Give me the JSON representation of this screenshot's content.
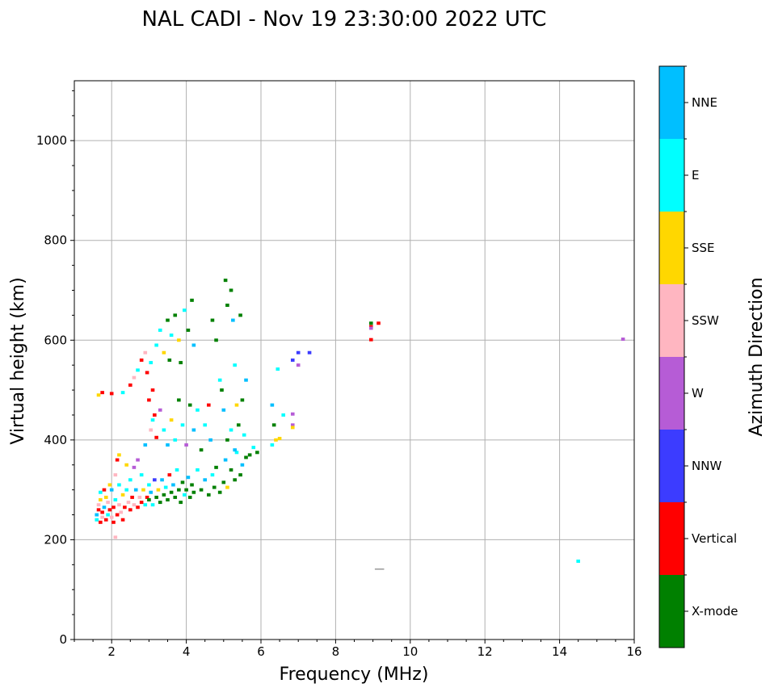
{
  "chart_data": {
    "type": "scatter",
    "title": "NAL CADI - Nov 19 23:30:00 2022 UTC",
    "xlabel": "Frequency (MHz)",
    "ylabel": "Virtual height (km)",
    "xlim": [
      1,
      16
    ],
    "ylim": [
      0,
      1120
    ],
    "xticks": [
      2,
      4,
      6,
      8,
      10,
      12,
      14,
      16
    ],
    "yticks": [
      0,
      200,
      400,
      600,
      800,
      1000
    ],
    "grid": true,
    "colorbar": {
      "label": "Azimuth Direction",
      "categories": [
        "X-mode",
        "Vertical",
        "NNW",
        "W",
        "SSW",
        "SSE",
        "E",
        "NNE"
      ],
      "colors": [
        "#008000",
        "#ff0000",
        "#3c3cff",
        "#b65cd6",
        "#ffb6c1",
        "#ffd700",
        "#00ffff",
        "#00bfff"
      ]
    },
    "point_format": [
      "frequency_mhz",
      "virtual_height_km",
      "category_index"
    ],
    "points": [
      [
        1.6,
        240,
        6
      ],
      [
        1.6,
        250,
        7
      ],
      [
        1.65,
        260,
        1
      ],
      [
        1.65,
        270,
        4
      ],
      [
        1.7,
        235,
        1
      ],
      [
        1.7,
        280,
        5
      ],
      [
        1.7,
        295,
        6
      ],
      [
        1.75,
        245,
        4
      ],
      [
        1.75,
        255,
        1
      ],
      [
        1.8,
        265,
        7
      ],
      [
        1.8,
        300,
        1
      ],
      [
        1.85,
        240,
        1
      ],
      [
        1.85,
        285,
        5
      ],
      [
        1.9,
        250,
        6
      ],
      [
        1.9,
        275,
        4
      ],
      [
        1.95,
        260,
        1
      ],
      [
        1.95,
        310,
        5
      ],
      [
        2.0,
        245,
        4
      ],
      [
        2.0,
        300,
        7
      ],
      [
        2.05,
        265,
        1
      ],
      [
        2.05,
        235,
        1
      ],
      [
        2.1,
        280,
        6
      ],
      [
        2.1,
        330,
        4
      ],
      [
        2.15,
        250,
        1
      ],
      [
        2.15,
        360,
        1
      ],
      [
        2.2,
        270,
        4
      ],
      [
        2.2,
        310,
        6
      ],
      [
        2.25,
        255,
        4
      ],
      [
        2.3,
        290,
        5
      ],
      [
        2.3,
        240,
        1
      ],
      [
        2.35,
        265,
        1
      ],
      [
        2.4,
        300,
        6
      ],
      [
        2.4,
        350,
        5
      ],
      [
        2.45,
        275,
        4
      ],
      [
        2.5,
        260,
        1
      ],
      [
        2.5,
        320,
        6
      ],
      [
        2.55,
        285,
        1
      ],
      [
        2.6,
        270,
        4
      ],
      [
        2.6,
        345,
        3
      ],
      [
        2.65,
        300,
        7
      ],
      [
        2.7,
        265,
        1
      ],
      [
        2.7,
        360,
        3
      ],
      [
        2.75,
        285,
        4
      ],
      [
        2.8,
        275,
        1
      ],
      [
        2.8,
        330,
        6
      ],
      [
        2.85,
        300,
        5
      ],
      [
        2.9,
        270,
        6
      ],
      [
        2.9,
        390,
        7
      ],
      [
        2.95,
        285,
        1
      ],
      [
        3.0,
        280,
        0
      ],
      [
        3.0,
        310,
        6
      ],
      [
        3.05,
        295,
        7
      ],
      [
        3.1,
        270,
        6
      ],
      [
        3.15,
        320,
        2
      ],
      [
        3.2,
        285,
        0
      ],
      [
        3.25,
        300,
        5
      ],
      [
        3.3,
        275,
        0
      ],
      [
        3.35,
        320,
        7
      ],
      [
        3.4,
        290,
        0
      ],
      [
        3.45,
        305,
        6
      ],
      [
        3.5,
        280,
        0
      ],
      [
        3.55,
        330,
        1
      ],
      [
        3.6,
        295,
        0
      ],
      [
        3.65,
        310,
        7
      ],
      [
        3.7,
        285,
        0
      ],
      [
        3.75,
        340,
        6
      ],
      [
        3.8,
        300,
        0
      ],
      [
        3.85,
        275,
        0
      ],
      [
        3.9,
        315,
        0
      ],
      [
        3.95,
        290,
        6
      ],
      [
        4.0,
        300,
        0
      ],
      [
        4.05,
        325,
        7
      ],
      [
        4.1,
        285,
        0
      ],
      [
        4.15,
        310,
        0
      ],
      [
        4.2,
        295,
        0
      ],
      [
        4.3,
        340,
        6
      ],
      [
        4.4,
        300,
        0
      ],
      [
        4.5,
        320,
        7
      ],
      [
        4.6,
        290,
        0
      ],
      [
        4.7,
        330,
        6
      ],
      [
        4.75,
        305,
        0
      ],
      [
        4.8,
        345,
        0
      ],
      [
        4.9,
        295,
        0
      ],
      [
        5.0,
        315,
        0
      ],
      [
        5.05,
        360,
        7
      ],
      [
        5.1,
        305,
        5
      ],
      [
        5.2,
        340,
        0
      ],
      [
        5.3,
        320,
        0
      ],
      [
        5.35,
        375,
        6
      ],
      [
        5.45,
        330,
        0
      ],
      [
        5.5,
        350,
        7
      ],
      [
        5.6,
        365,
        0
      ],
      [
        5.7,
        370,
        0
      ],
      [
        5.8,
        385,
        6
      ],
      [
        5.9,
        375,
        0
      ],
      [
        6.3,
        390,
        6
      ],
      [
        1.65,
        490,
        5
      ],
      [
        1.75,
        495,
        1
      ],
      [
        2.0,
        493,
        1
      ],
      [
        2.1,
        205,
        4
      ],
      [
        2.2,
        370,
        5
      ],
      [
        2.3,
        495,
        6
      ],
      [
        2.5,
        510,
        1
      ],
      [
        2.6,
        525,
        4
      ],
      [
        2.7,
        540,
        6
      ],
      [
        2.8,
        560,
        1
      ],
      [
        2.9,
        575,
        4
      ],
      [
        2.95,
        535,
        1
      ],
      [
        3.05,
        555,
        6
      ],
      [
        3.1,
        500,
        1
      ],
      [
        3.15,
        450,
        1
      ],
      [
        3.2,
        590,
        6
      ],
      [
        3.3,
        620,
        6
      ],
      [
        3.4,
        575,
        5
      ],
      [
        3.5,
        640,
        0
      ],
      [
        3.55,
        560,
        0
      ],
      [
        3.6,
        610,
        6
      ],
      [
        3.7,
        650,
        0
      ],
      [
        3.8,
        600,
        5
      ],
      [
        3.85,
        555,
        0
      ],
      [
        3.95,
        660,
        6
      ],
      [
        4.05,
        620,
        0
      ],
      [
        4.15,
        680,
        0
      ],
      [
        4.2,
        590,
        7
      ],
      [
        3.0,
        480,
        1
      ],
      [
        3.05,
        420,
        4
      ],
      [
        3.1,
        440,
        6
      ],
      [
        3.2,
        405,
        1
      ],
      [
        3.3,
        460,
        3
      ],
      [
        3.4,
        420,
        6
      ],
      [
        3.5,
        390,
        7
      ],
      [
        3.6,
        440,
        5
      ],
      [
        3.7,
        400,
        6
      ],
      [
        3.8,
        480,
        0
      ],
      [
        3.9,
        430,
        6
      ],
      [
        4.0,
        390,
        3
      ],
      [
        4.1,
        470,
        0
      ],
      [
        4.2,
        420,
        7
      ],
      [
        4.3,
        460,
        6
      ],
      [
        4.4,
        380,
        0
      ],
      [
        4.5,
        430,
        6
      ],
      [
        4.6,
        470,
        1
      ],
      [
        4.65,
        400,
        7
      ],
      [
        4.7,
        640,
        0
      ],
      [
        4.8,
        600,
        0
      ],
      [
        4.9,
        520,
        6
      ],
      [
        4.95,
        500,
        0
      ],
      [
        5.0,
        460,
        7
      ],
      [
        5.05,
        720,
        0
      ],
      [
        5.1,
        670,
        0
      ],
      [
        5.2,
        700,
        0
      ],
      [
        5.25,
        640,
        7
      ],
      [
        5.3,
        550,
        6
      ],
      [
        5.35,
        470,
        5
      ],
      [
        5.4,
        430,
        0
      ],
      [
        5.45,
        650,
        0
      ],
      [
        5.5,
        480,
        0
      ],
      [
        5.55,
        410,
        6
      ],
      [
        5.6,
        520,
        7
      ],
      [
        5.2,
        420,
        6
      ],
      [
        5.1,
        400,
        0
      ],
      [
        5.3,
        380,
        7
      ],
      [
        6.3,
        470,
        7
      ],
      [
        6.35,
        430,
        0
      ],
      [
        6.4,
        400,
        5
      ],
      [
        6.5,
        403,
        5
      ],
      [
        6.45,
        542,
        6
      ],
      [
        6.6,
        450,
        6
      ],
      [
        6.85,
        560,
        2
      ],
      [
        7.0,
        575,
        2
      ],
      [
        7.3,
        575,
        2
      ],
      [
        7.0,
        550,
        3
      ],
      [
        6.85,
        430,
        3
      ],
      [
        6.85,
        425,
        5
      ],
      [
        6.85,
        452,
        3
      ],
      [
        8.95,
        634,
        0
      ],
      [
        9.15,
        634,
        1
      ],
      [
        8.95,
        627,
        1
      ],
      [
        8.95,
        624,
        3
      ],
      [
        8.95,
        601,
        1
      ],
      [
        15.7,
        602,
        3
      ],
      [
        14.5,
        157,
        6
      ]
    ]
  }
}
